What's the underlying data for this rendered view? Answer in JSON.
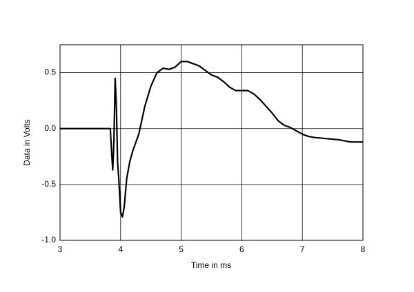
{
  "chart_data": {
    "type": "line",
    "x_label": "Time in ms",
    "y_label": "Data in Volts",
    "x": [
      3.0,
      3.8,
      3.83,
      3.85,
      3.87,
      3.89,
      3.91,
      3.93,
      3.95,
      3.97,
      4.0,
      4.03,
      4.06,
      4.1,
      4.15,
      4.2,
      4.3,
      4.4,
      4.5,
      4.6,
      4.7,
      4.8,
      4.9,
      5.0,
      5.1,
      5.2,
      5.3,
      5.4,
      5.5,
      5.6,
      5.7,
      5.8,
      5.9,
      6.0,
      6.1,
      6.2,
      6.3,
      6.4,
      6.5,
      6.6,
      6.7,
      6.8,
      6.9,
      7.0,
      7.1,
      7.2,
      7.4,
      7.6,
      7.8,
      8.0
    ],
    "series": [
      {
        "color": "#000000",
        "values": [
          0.0,
          0.0,
          0.0,
          -0.2,
          -0.37,
          -0.1,
          0.45,
          0.2,
          -0.3,
          -0.45,
          -0.75,
          -0.79,
          -0.7,
          -0.45,
          -0.3,
          -0.2,
          -0.05,
          0.2,
          0.38,
          0.5,
          0.54,
          0.53,
          0.55,
          0.6,
          0.6,
          0.58,
          0.56,
          0.52,
          0.48,
          0.46,
          0.42,
          0.37,
          0.34,
          0.34,
          0.34,
          0.31,
          0.26,
          0.2,
          0.14,
          0.07,
          0.03,
          0.01,
          -0.02,
          -0.05,
          -0.07,
          -0.08,
          -0.09,
          -0.1,
          -0.12,
          -0.12
        ]
      }
    ],
    "xlim": [
      3,
      8
    ],
    "xticks": [
      3,
      4,
      5,
      6,
      7,
      8
    ],
    "ylim": [
      -1.0,
      0.75
    ],
    "yticks": [
      {
        "value": -1.0,
        "label": "-1.0"
      },
      -0.5,
      {
        "value": 0.0,
        "label": "0.0"
      },
      0.5
    ],
    "grid": true
  }
}
